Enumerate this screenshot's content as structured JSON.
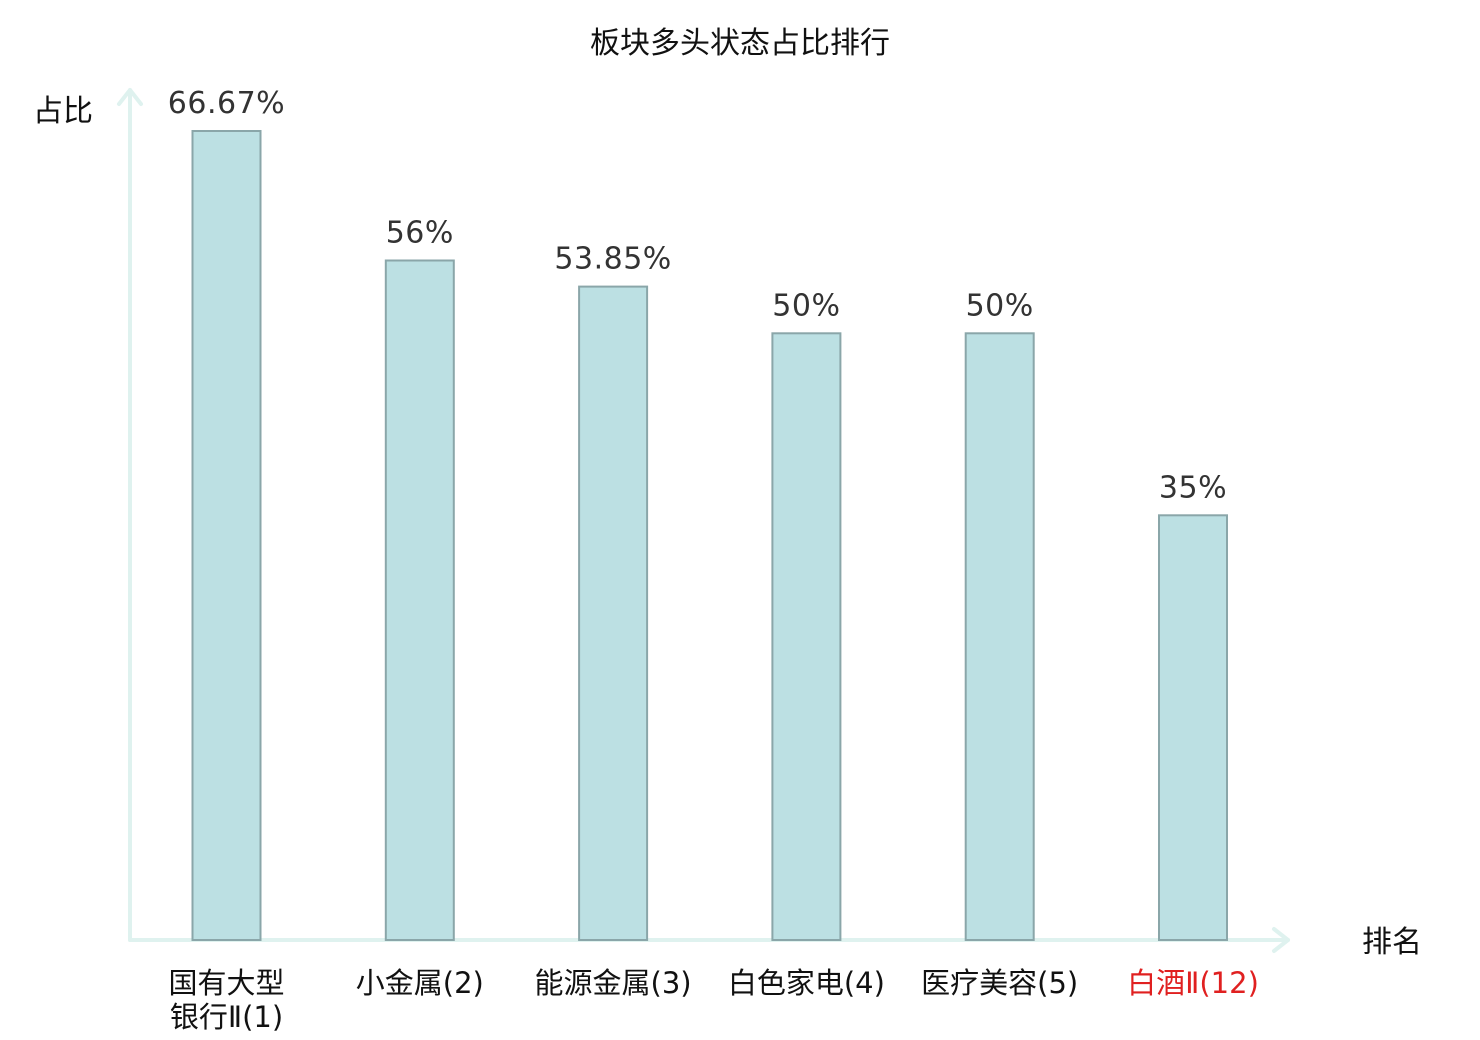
{
  "chart_data": {
    "type": "bar",
    "title": "板块多头状态占比排行",
    "ylabel": "占比",
    "xlabel": "排名",
    "ylim": [
      0,
      70
    ],
    "grid": false,
    "legend": "none",
    "categories": [
      [
        "国有大型",
        "银行Ⅱ(1)"
      ],
      [
        "小金属(2)"
      ],
      [
        "能源金属(3)"
      ],
      [
        "白色家电(4)"
      ],
      [
        "医疗美容(5)"
      ],
      [
        "白酒Ⅱ(12)"
      ]
    ],
    "values": [
      66.67,
      56,
      53.85,
      50,
      50,
      35
    ],
    "value_labels": [
      "66.67%",
      "56%",
      "53.85%",
      "50%",
      "50%",
      "35%"
    ],
    "highlight": [
      false,
      false,
      false,
      false,
      false,
      true
    ],
    "colors": {
      "bar_fill": "#bce0e3",
      "bar_stroke": "#8aa6a9",
      "axis": "#dff2ef",
      "highlight_text": "#e02020"
    }
  }
}
